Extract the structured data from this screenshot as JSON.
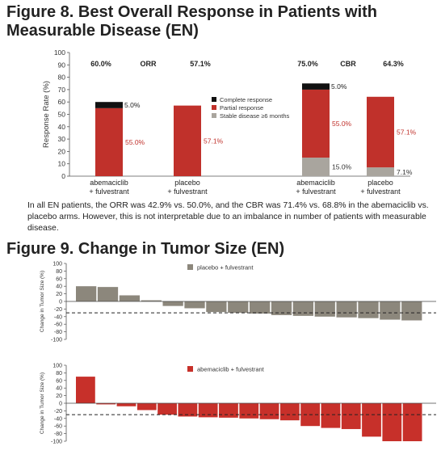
{
  "figure8": {
    "title": "Figure 8. Best Overall Response in Patients with Measurable Disease (EN)",
    "caption": "In all EN patients, the ORR was 42.9% vs. 50.0%, and the CBR was 71.4% vs. 68.8% in the abemaciclib vs. placebo arms. However, this is not interpretable due to an imbalance in number of patients with measurable disease."
  },
  "figure9": {
    "title": "Figure 9. Change in Tumor Size (EN)"
  },
  "colors": {
    "complete": "#111111",
    "partial": "#c0312b",
    "stable": "#a9a59e",
    "placebo_bar": "#8c877c",
    "abema_bar": "#c7302a"
  },
  "chart_data": [
    {
      "type": "bar",
      "stacked": true,
      "ylabel": "Response Rate (%)",
      "ylim": [
        0,
        100
      ],
      "yticks": [
        0,
        10,
        20,
        30,
        40,
        50,
        60,
        70,
        80,
        90,
        100
      ],
      "legend": [
        "Complete response",
        "Partial response",
        "Stable disease ≥6 months"
      ],
      "legend_placement": "top-center",
      "groups": [
        {
          "label": "ORR",
          "bars": [
            {
              "category": [
                "abemaciclib",
                "+ fulvestrant"
              ],
              "total_label": "60.0%",
              "segments": [
                {
                  "series": "Partial response",
                  "value": 55.0,
                  "label": "55.0%"
                },
                {
                  "series": "Complete response",
                  "value": 5.0,
                  "label": "5.0%"
                }
              ]
            },
            {
              "category": [
                "placebo",
                "+ fulvestrant"
              ],
              "total_label": "57.1%",
              "segments": [
                {
                  "series": "Partial response",
                  "value": 57.1,
                  "label": "57.1%"
                }
              ]
            }
          ]
        },
        {
          "label": "CBR",
          "bars": [
            {
              "category": [
                "abemaciclib",
                "+ fulvestrant"
              ],
              "total_label": "75.0%",
              "segments": [
                {
                  "series": "Stable disease ≥6 months",
                  "value": 15.0,
                  "label": "15.0%"
                },
                {
                  "series": "Partial response",
                  "value": 55.0,
                  "label": "55.0%"
                },
                {
                  "series": "Complete response",
                  "value": 5.0,
                  "label": "5.0%"
                }
              ]
            },
            {
              "category": [
                "placebo",
                "+ fulvestrant"
              ],
              "total_label": "64.3%",
              "segments": [
                {
                  "series": "Stable disease ≥6 months",
                  "value": 7.1,
                  "label": "7.1%"
                },
                {
                  "series": "Partial response",
                  "value": 57.1,
                  "label": "57.1%"
                }
              ]
            }
          ]
        }
      ]
    },
    {
      "type": "bar",
      "ylabel": "Change in Tumor Size (%)",
      "ylim": [
        -100,
        100
      ],
      "yticks": [
        100,
        80,
        60,
        40,
        20,
        0,
        -20,
        -40,
        -60,
        -80,
        -100
      ],
      "reference_line": -30,
      "series": [
        {
          "name": "placebo + fulvestrant",
          "values": [
            40,
            38,
            16,
            3,
            -12,
            -18,
            -28,
            -30,
            -32,
            -36,
            -38,
            -40,
            -42,
            -44,
            -48,
            -50
          ]
        }
      ]
    },
    {
      "type": "bar",
      "ylabel": "Change in Tumor Size (%)",
      "ylim": [
        -100,
        100
      ],
      "yticks": [
        100,
        80,
        60,
        40,
        20,
        0,
        -20,
        -40,
        -60,
        -80,
        -100
      ],
      "reference_line": -30,
      "series": [
        {
          "name": "abemaciclib + fulvestrant",
          "values": [
            70,
            -3,
            -8,
            -18,
            -30,
            -35,
            -37,
            -38,
            -40,
            -42,
            -45,
            -60,
            -65,
            -68,
            -88,
            -100,
            -100
          ]
        }
      ]
    }
  ]
}
